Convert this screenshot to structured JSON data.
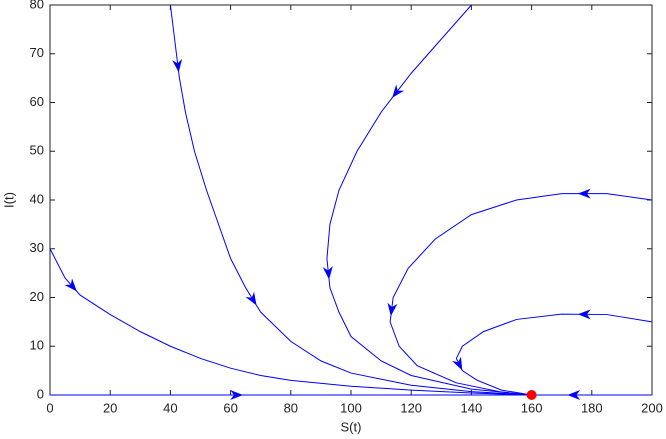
{
  "chart_data": {
    "type": "line",
    "xlabel": "S(t)",
    "ylabel": "I(t)",
    "xlim": [
      0,
      200
    ],
    "ylim": [
      0,
      80
    ],
    "xticks": [
      0,
      20,
      40,
      60,
      80,
      100,
      120,
      140,
      160,
      180,
      200
    ],
    "yticks": [
      0,
      10,
      20,
      30,
      40,
      50,
      60,
      70,
      80
    ],
    "series": [
      {
        "color": "#0000ff",
        "x": [
          0,
          5,
          10,
          20,
          30,
          40,
          50,
          60,
          70,
          80,
          100,
          120,
          140,
          155,
          160
        ],
        "y": [
          30,
          24,
          20.5,
          16.5,
          13,
          10,
          7.5,
          5.5,
          4,
          3,
          1.8,
          1,
          0.4,
          0.1,
          0
        ]
      },
      {
        "color": "#0000ff",
        "x": [
          0,
          24,
          100,
          160
        ],
        "y": [
          0,
          0,
          0,
          0
        ]
      },
      {
        "color": "#0000ff",
        "x": [
          200,
          188,
          160
        ],
        "y": [
          0,
          0,
          0
        ]
      },
      {
        "color": "#0000ff",
        "x": [
          40,
          41,
          42,
          43,
          45,
          48,
          52,
          56,
          60,
          65,
          70,
          80,
          90,
          100,
          120,
          140,
          160
        ],
        "y": [
          80,
          75,
          70,
          65,
          58,
          50,
          42,
          35,
          28,
          22,
          17,
          11,
          7,
          4.5,
          2,
          0.7,
          0
        ]
      },
      {
        "color": "#0000ff",
        "x": [
          140,
          130,
          120,
          110,
          102,
          96,
          93,
          92,
          93,
          96,
          100,
          110,
          120,
          140,
          160
        ],
        "y": [
          80,
          73,
          66,
          58,
          50,
          42,
          35,
          28,
          22,
          17,
          12,
          7,
          4,
          1.2,
          0
        ]
      },
      {
        "color": "#0000ff",
        "x": [
          200,
          185,
          170,
          155,
          140,
          128,
          119,
          114,
          113,
          116,
          122,
          135,
          150,
          160
        ],
        "y": [
          40,
          41.3,
          41.3,
          40,
          37,
          32,
          26,
          20,
          15,
          10,
          6,
          2.5,
          0.6,
          0
        ]
      },
      {
        "color": "#0000ff",
        "x": [
          200,
          185,
          170,
          155,
          144,
          137,
          135,
          137,
          142,
          150,
          160
        ],
        "y": [
          15,
          16.5,
          16.6,
          15.5,
          13,
          10,
          7.5,
          5,
          3,
          1,
          0
        ]
      }
    ],
    "equilibrium": {
      "x": 160,
      "y": 0,
      "color": "#ff0000"
    }
  }
}
